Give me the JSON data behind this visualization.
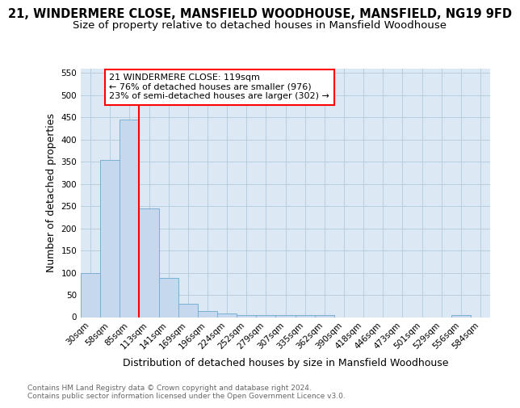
{
  "title": "21, WINDERMERE CLOSE, MANSFIELD WOODHOUSE, MANSFIELD, NG19 9FD",
  "subtitle": "Size of property relative to detached houses in Mansfield Woodhouse",
  "xlabel": "Distribution of detached houses by size in Mansfield Woodhouse",
  "ylabel": "Number of detached properties",
  "footnote": "Contains HM Land Registry data © Crown copyright and database right 2024.\nContains public sector information licensed under the Open Government Licence v3.0.",
  "categories": [
    "30sqm",
    "58sqm",
    "85sqm",
    "113sqm",
    "141sqm",
    "169sqm",
    "196sqm",
    "224sqm",
    "252sqm",
    "279sqm",
    "307sqm",
    "335sqm",
    "362sqm",
    "390sqm",
    "418sqm",
    "446sqm",
    "473sqm",
    "501sqm",
    "529sqm",
    "556sqm",
    "584sqm"
  ],
  "values": [
    100,
    355,
    445,
    245,
    88,
    30,
    14,
    9,
    5,
    4,
    4,
    5,
    5,
    0,
    0,
    0,
    0,
    0,
    0,
    4,
    0
  ],
  "bar_color": "#c5d8ee",
  "bar_edge_color": "#7aafd4",
  "bar_edge_width": 0.7,
  "grid_color": "#b8cfe0",
  "bg_color": "#dce9f5",
  "red_line_label": "21 WINDERMERE CLOSE: 119sqm",
  "annotation_line1": "← 76% of detached houses are smaller (976)",
  "annotation_line2": "23% of semi-detached houses are larger (302) →",
  "ylim": [
    0,
    560
  ],
  "yticks": [
    0,
    50,
    100,
    150,
    200,
    250,
    300,
    350,
    400,
    450,
    500,
    550
  ],
  "title_fontsize": 10.5,
  "subtitle_fontsize": 9.5,
  "xlabel_fontsize": 9,
  "ylabel_fontsize": 9,
  "tick_fontsize": 7.5,
  "footnote_fontsize": 6.5,
  "annot_fontsize": 8
}
